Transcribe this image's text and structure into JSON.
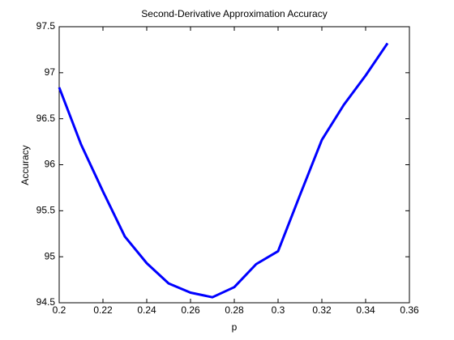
{
  "chart_data": {
    "type": "line",
    "title": "Second-Derivative Approximation Accuracy",
    "x_label": "p",
    "y_label": "Accuracy",
    "x": [
      0.2,
      0.21,
      0.22,
      0.23,
      0.24,
      0.25,
      0.26,
      0.27,
      0.28,
      0.29,
      0.3,
      0.31,
      0.32,
      0.33,
      0.34,
      0.35
    ],
    "series": [
      {
        "color": "#0000ff",
        "values": [
          96.84,
          96.22,
          95.71,
          95.22,
          94.93,
          94.71,
          94.61,
          94.56,
          94.67,
          94.92,
          95.06,
          95.67,
          96.27,
          96.65,
          96.97,
          97.32
        ]
      }
    ],
    "xlim": [
      0.2,
      0.36
    ],
    "xticks": [
      0.2,
      0.22,
      0.24,
      0.26,
      0.28,
      0.3,
      0.32,
      0.34,
      0.36
    ],
    "ylim": [
      94.5,
      97.5
    ],
    "yticks": [
      94.5,
      95,
      95.5,
      96,
      96.5,
      97,
      97.5
    ],
    "grid": false
  }
}
